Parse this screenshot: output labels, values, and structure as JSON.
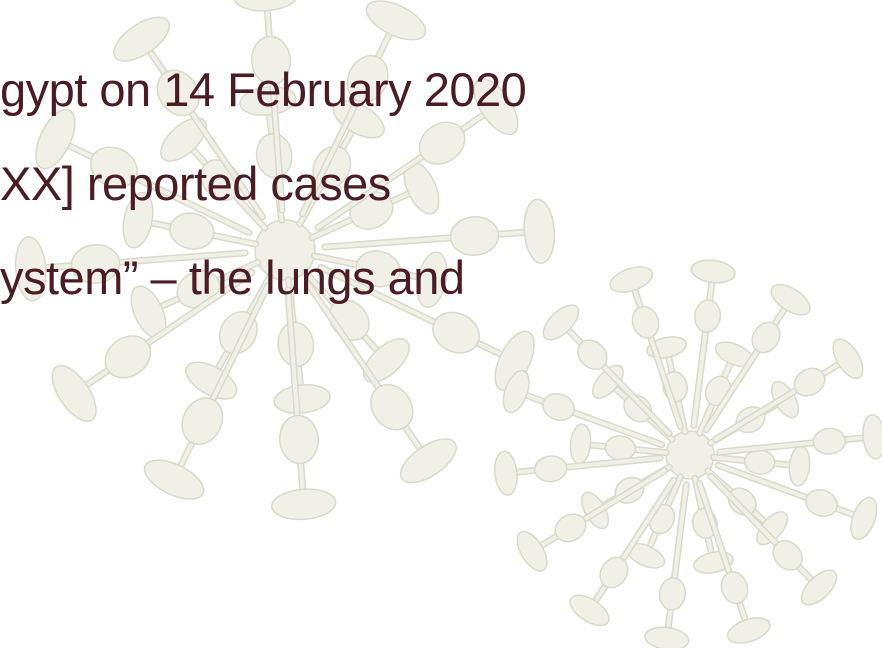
{
  "slide": {
    "lines": [
      "gypt on 14 February 2020",
      "XX] reported cases",
      "ystem” – the lungs and"
    ]
  }
}
